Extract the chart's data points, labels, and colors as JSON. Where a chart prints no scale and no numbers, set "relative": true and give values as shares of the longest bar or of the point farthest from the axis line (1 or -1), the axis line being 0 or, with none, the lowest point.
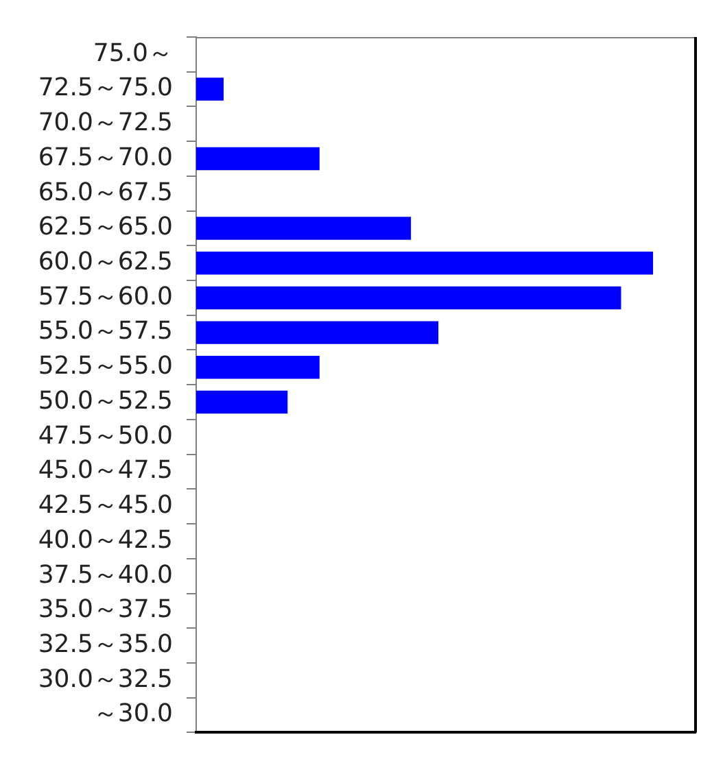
{
  "chart_data": {
    "type": "bar",
    "orientation": "horizontal",
    "relative": true,
    "color": "#0000ff",
    "categories": [
      "75.0～",
      "72.5～75.0",
      "70.0～72.5",
      "67.5～70.0",
      "65.0～67.5",
      "62.5～65.0",
      "60.0～62.5",
      "57.5～60.0",
      "55.0～57.5",
      "52.5～55.0",
      "50.0～52.5",
      "47.5～50.0",
      "45.0～47.5",
      "42.5～45.0",
      "40.0～42.5",
      "37.5～40.0",
      "35.0～37.5",
      "32.5～35.0",
      "30.0～32.5",
      "～30.0"
    ],
    "values": [
      0,
      0.06,
      0,
      0.27,
      0,
      0.47,
      1,
      0.93,
      0.53,
      0.27,
      0.2,
      0,
      0,
      0,
      0,
      0,
      0,
      0,
      0,
      0
    ]
  }
}
